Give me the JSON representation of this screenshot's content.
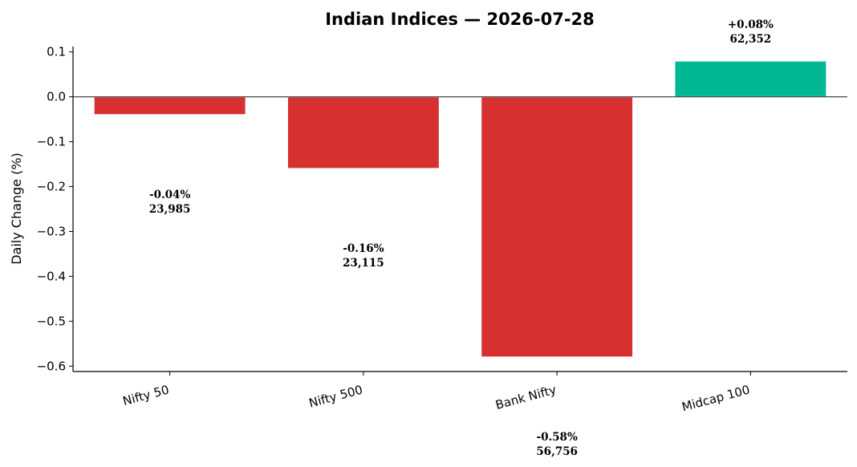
{
  "chart_data": {
    "type": "bar",
    "title": "Indian Indices — 2026-07-28",
    "xlabel": "",
    "ylabel": "Daily Change (%)",
    "ylim": [
      -0.612,
      0.112
    ],
    "yticks": [
      0.1,
      0.0,
      -0.1,
      -0.2,
      -0.3,
      -0.4,
      -0.5,
      -0.6
    ],
    "ytick_labels": [
      "0.1",
      "0.0",
      "−0.1",
      "−0.2",
      "−0.3",
      "−0.4",
      "−0.5",
      "−0.6"
    ],
    "categories": [
      "Nifty 50",
      "Nifty 500",
      "Bank Nifty",
      "Midcap 100"
    ],
    "values": [
      -0.04,
      -0.16,
      -0.58,
      0.08
    ],
    "index_levels": [
      "23,985",
      "23,115",
      "56,756",
      "62,352"
    ],
    "value_labels": [
      "-0.04%",
      "-0.16%",
      "-0.58%",
      "+0.08%"
    ],
    "colors": {
      "negative": "#d63031",
      "positive": "#00b894",
      "zero_line": "#333333",
      "axis": "#000000"
    },
    "grid": false
  }
}
